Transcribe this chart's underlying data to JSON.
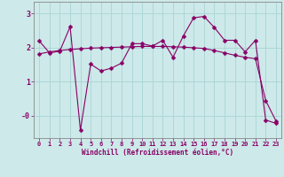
{
  "title": "",
  "xlabel": "Windchill (Refroidissement éolien,°C)",
  "ylabel": "",
  "bg_color": "#cde9e9",
  "grid_color": "#aad4d4",
  "line_color": "#880066",
  "xlim": [
    -0.5,
    23.5
  ],
  "ylim": [
    -0.65,
    3.35
  ],
  "xticks": [
    0,
    1,
    2,
    3,
    4,
    5,
    6,
    7,
    8,
    9,
    10,
    11,
    12,
    13,
    14,
    15,
    16,
    17,
    18,
    19,
    20,
    21,
    22,
    23
  ],
  "series1_x": [
    0,
    1,
    2,
    3,
    4,
    5,
    6,
    7,
    8,
    9,
    10,
    11,
    12,
    13,
    14,
    15,
    16,
    17,
    18,
    19,
    20,
    21,
    22,
    23
  ],
  "series1_y": [
    2.2,
    1.85,
    1.9,
    2.62,
    -0.42,
    1.52,
    1.32,
    1.4,
    1.55,
    2.12,
    2.12,
    2.05,
    2.22,
    1.72,
    2.35,
    2.88,
    2.92,
    2.6,
    2.22,
    2.22,
    1.88,
    2.22,
    -0.12,
    -0.22
  ],
  "series2_x": [
    0,
    1,
    2,
    3,
    4,
    5,
    6,
    7,
    8,
    9,
    10,
    11,
    12,
    13,
    14,
    15,
    16,
    17,
    18,
    19,
    20,
    21,
    22,
    23
  ],
  "series2_y": [
    1.82,
    1.88,
    1.92,
    1.95,
    1.97,
    1.99,
    2.0,
    2.01,
    2.02,
    2.03,
    2.04,
    2.04,
    2.04,
    2.03,
    2.02,
    2.0,
    1.98,
    1.92,
    1.85,
    1.78,
    1.72,
    1.68,
    0.45,
    -0.15
  ],
  "marker": "D",
  "markersize": 2.5,
  "linewidth": 0.8,
  "label_fontsize": 5.5,
  "tick_fontsize": 5
}
